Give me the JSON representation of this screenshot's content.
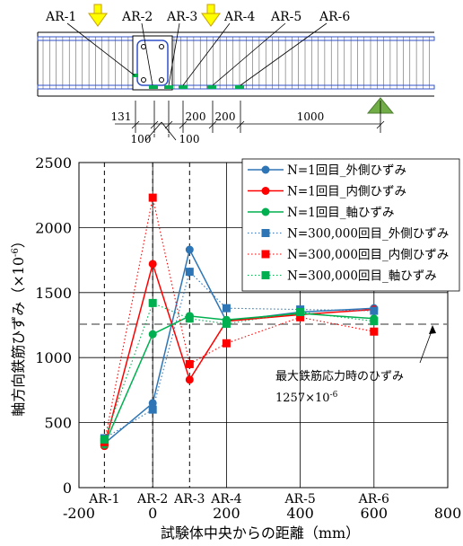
{
  "diagram": {
    "labels": [
      "AR-1",
      "AR-2",
      "AR-3",
      "AR-4",
      "AR-5",
      "AR-6"
    ],
    "dims_top": [
      "131",
      "200",
      "200",
      "1000"
    ],
    "dims_bottom": [
      "100",
      "100"
    ]
  },
  "ylabel_parts": [
    "軸方向鉄筋ひずみ（×10",
    "-6",
    "）"
  ],
  "annotation": {
    "line1": "最大鉄筋応力時のひずみ",
    "value": "1257",
    "times": "×",
    "base": "10",
    "exp": "-6"
  },
  "colors": {
    "blue": "#2e75b6",
    "red": "#ff0000",
    "green": "#00b050",
    "supportGreen": "#70ad47",
    "arrowYellow": "#ffff00"
  },
  "chart_data": {
    "type": "line",
    "xlabel": "試験体中央からの距離（mm）",
    "ylabel": "軸方向鉄筋ひずみ（×10-6）",
    "xlim": [
      -200,
      800
    ],
    "ylim": [
      0,
      2500
    ],
    "xticks": [
      -200,
      0,
      200,
      400,
      600,
      800
    ],
    "yticks": [
      0,
      500,
      1000,
      1500,
      2000,
      2500
    ],
    "x": [
      -131,
      0,
      100,
      200,
      400,
      600
    ],
    "x_categories": [
      "AR-1",
      "AR-2",
      "AR-3",
      "AR-4",
      "AR-5",
      "AR-6"
    ],
    "reference_lines": [
      {
        "type": "horizontal",
        "y": 1257
      },
      {
        "type": "vertical",
        "x": -131
      },
      {
        "type": "vertical",
        "x": 0
      },
      {
        "type": "vertical",
        "x": 100
      }
    ],
    "grid": true,
    "legend_position": "top-right",
    "series": [
      {
        "name": "N=1回目_外側ひずみ",
        "color": "#2e75b6",
        "marker": "circle",
        "line": "solid",
        "values": [
          340,
          650,
          1830,
          1280,
          1350,
          1380
        ]
      },
      {
        "name": "N=1回目_内側ひずみ",
        "color": "#ff0000",
        "marker": "circle",
        "line": "solid",
        "values": [
          320,
          1720,
          830,
          1280,
          1330,
          1370
        ]
      },
      {
        "name": "N=1回目_軸ひずみ",
        "color": "#00b050",
        "marker": "circle",
        "line": "solid",
        "values": [
          330,
          1180,
          1320,
          1290,
          1340,
          1300
        ]
      },
      {
        "name": "N=300,000回目_外側ひずみ",
        "color": "#2e75b6",
        "marker": "square",
        "line": "dotted",
        "values": [
          380,
          600,
          1660,
          1380,
          1370,
          1360
        ]
      },
      {
        "name": "N=300,000回目_内側ひずみ",
        "color": "#ff0000",
        "marker": "square",
        "line": "dotted",
        "values": [
          350,
          2230,
          950,
          1110,
          1310,
          1200
        ]
      },
      {
        "name": "N=300,000回目_軸ひずみ",
        "color": "#00b050",
        "marker": "square",
        "line": "dotted",
        "values": [
          370,
          1420,
          1300,
          1260,
          1350,
          1280
        ]
      }
    ]
  }
}
